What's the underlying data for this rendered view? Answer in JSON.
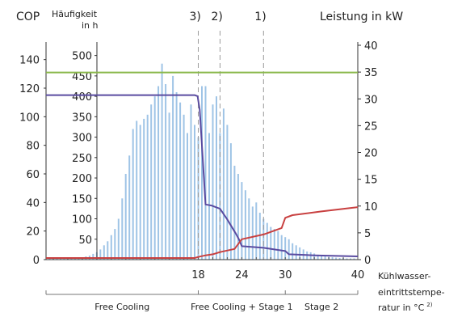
{
  "chart_data": {
    "type": "bar",
    "axes": {
      "cop": {
        "label": "COP",
        "ylim": [
          0,
          150
        ],
        "ticks": [
          0,
          20,
          40,
          60,
          80,
          100,
          120,
          140
        ]
      },
      "freq": {
        "label_line1": "Häufigkeit",
        "label_line2": "in h",
        "ylim": [
          0,
          525
        ],
        "ticks": [
          50,
          100,
          150,
          200,
          250,
          300,
          350,
          400,
          450,
          500
        ]
      },
      "power": {
        "label": "Leistung in kW",
        "ylim": [
          0,
          40
        ],
        "ticks": [
          0,
          5,
          10,
          15,
          20,
          25,
          30,
          35,
          40
        ]
      },
      "x": {
        "xlim": [
          -3,
          40
        ],
        "ticks": [
          18,
          24,
          30,
          40
        ],
        "label_line1": "Kühlwasser-",
        "label_line2": "eintrittstempe-",
        "label_line3": "ratur in °C",
        "label_sup": "2)"
      }
    },
    "markers": [
      {
        "x": 18,
        "label": "3)"
      },
      {
        "x": 21,
        "label": "2)"
      },
      {
        "x": 27,
        "label": "1)"
      }
    ],
    "zones": [
      {
        "from": -3,
        "to": 18,
        "label": "Free Cooling"
      },
      {
        "from": 18,
        "to": 30,
        "label": "Free Cooling + Stage 1"
      },
      {
        "from": 30,
        "to": 40,
        "label": "Stage 2"
      }
    ],
    "histogram": {
      "name": "Häufigkeit in h",
      "color": "#9fc4e6",
      "x": [
        -2.5,
        -2,
        -1.5,
        -1,
        -0.5,
        0,
        0.5,
        1,
        1.5,
        2,
        2.5,
        3,
        3.5,
        4,
        4.5,
        5,
        5.5,
        6,
        6.5,
        7,
        7.5,
        8,
        8.5,
        9,
        9.5,
        10,
        10.5,
        11,
        11.5,
        12,
        12.5,
        13,
        13.5,
        14,
        14.5,
        15,
        15.5,
        16,
        16.5,
        17,
        17.5,
        18,
        18.5,
        19,
        19.5,
        20,
        20.5,
        21,
        21.5,
        22,
        22.5,
        23,
        23.5,
        24,
        24.5,
        25,
        25.5,
        26,
        26.5,
        27,
        27.5,
        28,
        28.5,
        29,
        29.5,
        30,
        30.5,
        31,
        31.5,
        32,
        32.5,
        33,
        33.5,
        34,
        34.5,
        35,
        35.5,
        36,
        36.5,
        37,
        37.5,
        38,
        38.5,
        39,
        39.5
      ],
      "values": [
        3,
        3,
        3,
        4,
        4,
        4,
        5,
        5,
        6,
        6,
        8,
        10,
        14,
        18,
        25,
        35,
        45,
        60,
        75,
        100,
        150,
        210,
        255,
        320,
        340,
        330,
        345,
        355,
        380,
        400,
        425,
        480,
        430,
        360,
        450,
        410,
        385,
        355,
        310,
        380,
        330,
        300,
        425,
        425,
        310,
        380,
        400,
        310,
        370,
        330,
        285,
        230,
        210,
        190,
        170,
        150,
        130,
        140,
        115,
        100,
        90,
        80,
        75,
        70,
        60,
        55,
        50,
        40,
        35,
        30,
        25,
        20,
        18,
        15,
        12,
        10,
        8,
        7,
        6,
        5,
        4,
        4,
        3,
        3,
        3
      ]
    },
    "series": [
      {
        "name": "COP",
        "axis": "cop",
        "color": "#8ab84a",
        "x": [
          -3,
          40
        ],
        "values": [
          131,
          131
        ]
      },
      {
        "name": "Free Cooling",
        "axis": "power",
        "color": "#5a4ba0",
        "x": [
          -3,
          17.5,
          17.9,
          18.2,
          19,
          19.8,
          21,
          22,
          23.2,
          23.6,
          24,
          27,
          30,
          30.5,
          34,
          40
        ],
        "values": [
          30.7,
          30.7,
          30.5,
          28,
          10.3,
          10.1,
          9.5,
          7.5,
          4.8,
          3.8,
          2.5,
          2.2,
          1.6,
          1.0,
          0.8,
          0.6
        ]
      },
      {
        "name": "Stage",
        "axis": "power",
        "color": "#c84040",
        "x": [
          -3,
          17.5,
          18,
          19,
          20,
          21,
          23,
          24,
          27,
          29.5,
          30,
          31,
          35,
          40
        ],
        "values": [
          0.3,
          0.3,
          0.5,
          0.8,
          1.0,
          1.4,
          2.0,
          3.8,
          4.7,
          5.9,
          7.8,
          8.3,
          9.0,
          9.8
        ]
      }
    ]
  }
}
